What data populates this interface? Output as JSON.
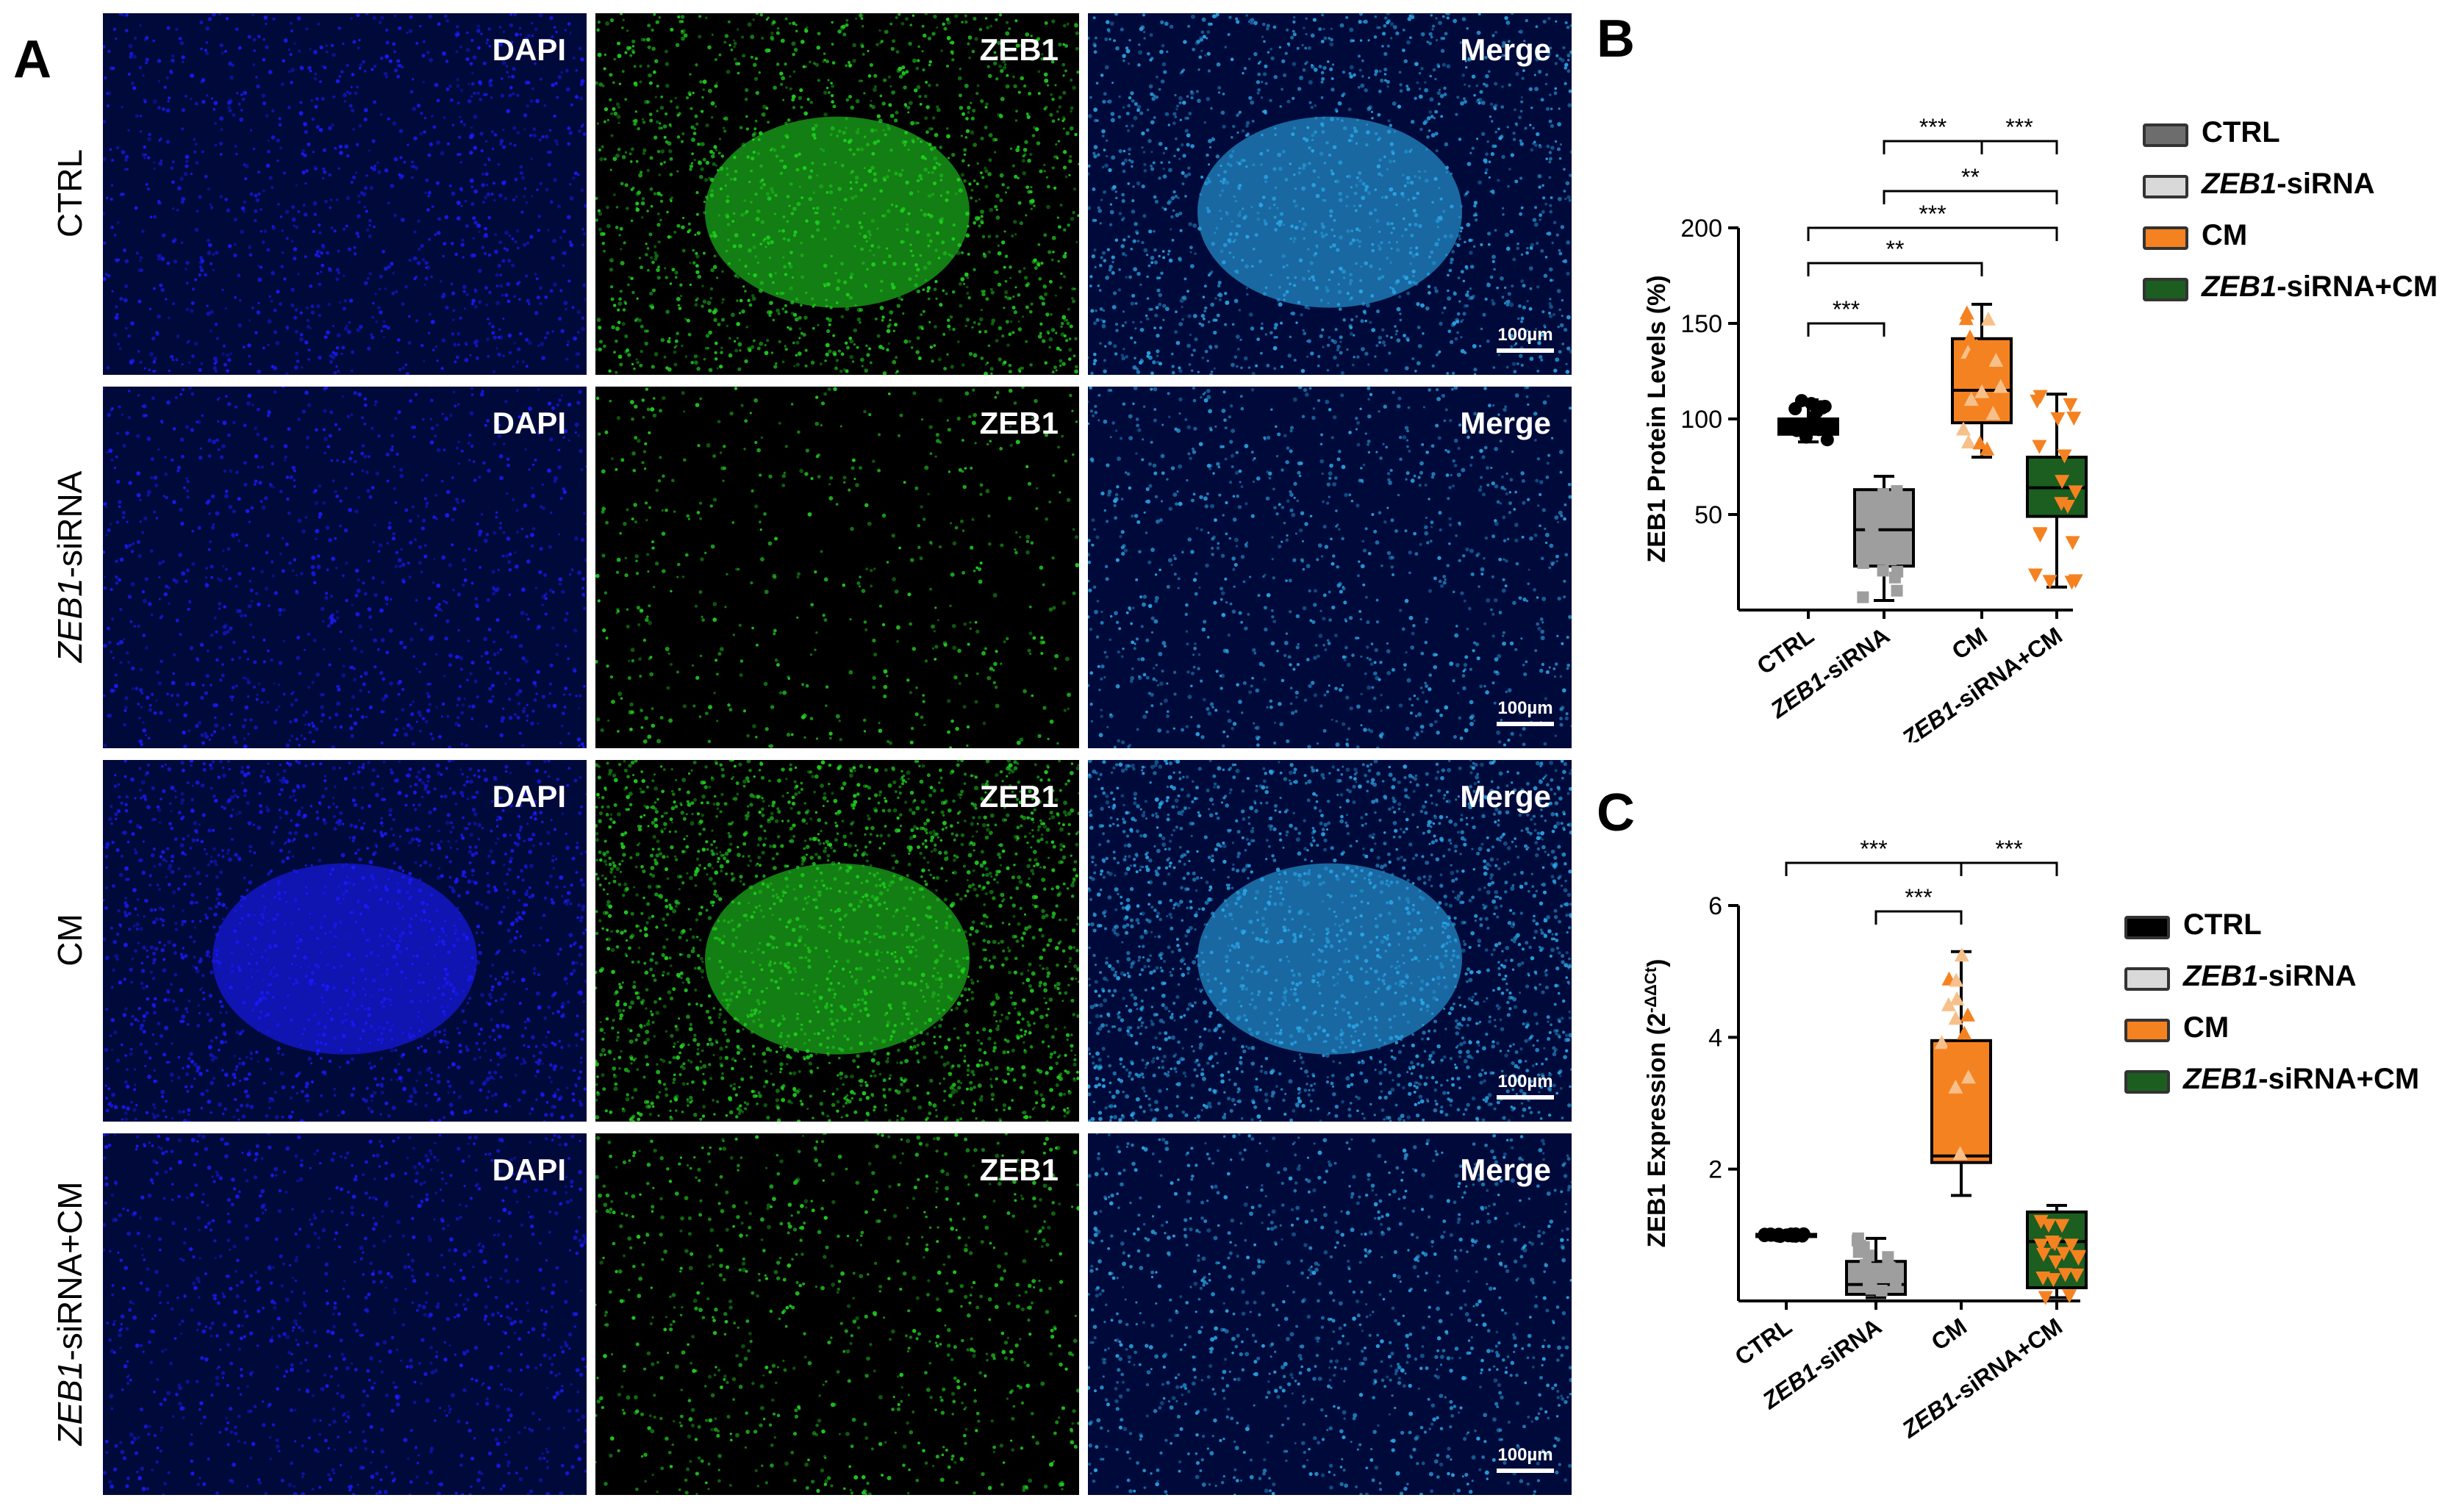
{
  "panel_letters": {
    "a": "A",
    "b": "B",
    "c": "C"
  },
  "micrographs": {
    "columns": [
      "DAPI",
      "ZEB1",
      "Merge"
    ],
    "rows": [
      {
        "label_italic": "",
        "label_plain": "CTRL",
        "intensity": [
          0.35,
          0.55,
          0.55
        ]
      },
      {
        "label_italic": "ZEB1",
        "label_plain": "-siRNA",
        "intensity": [
          0.3,
          0.06,
          0.3
        ]
      },
      {
        "label_italic": "",
        "label_plain": "CM",
        "intensity": [
          0.6,
          0.85,
          0.85
        ]
      },
      {
        "label_italic": "ZEB1",
        "label_plain": "-siRNA+CM",
        "intensity": [
          0.3,
          0.2,
          0.35
        ]
      }
    ],
    "scale_bar": "100µm",
    "channel_colors": {
      "DAPI": "#1a1aff",
      "ZEB1": "#1fd21f",
      "Merge": "#2aa6e6"
    }
  },
  "chart_data": [
    {
      "type": "box",
      "panel": "B",
      "ylabel": "ZEB1 Protein Levels (%)",
      "yticks": [
        50,
        100,
        150,
        200
      ],
      "ylim": [
        0,
        200
      ],
      "categories": [
        "CTRL",
        "ZEB1-siRNA",
        "CM",
        "ZEB1-siRNA+CM"
      ],
      "category_labels": [
        {
          "italic": "",
          "plain": "CTRL"
        },
        {
          "italic": "ZEB1",
          "plain": "-siRNA"
        },
        {
          "italic": "",
          "plain": "CM"
        },
        {
          "italic": "ZEB1",
          "plain": "-siRNA+CM"
        }
      ],
      "series": [
        {
          "name": "CTRL",
          "color": "#000000",
          "marker": "circle",
          "min": 88,
          "q1": 92,
          "median": 96,
          "q3": 100,
          "max": 110
        },
        {
          "name": "ZEB1-siRNA",
          "color": "#9e9e9e",
          "marker": "square",
          "min": 5,
          "q1": 23,
          "median": 42,
          "q3": 63,
          "max": 70
        },
        {
          "name": "CM",
          "color": "#f58220",
          "marker": "triangle-up",
          "min": 80,
          "q1": 98,
          "median": 115,
          "q3": 142,
          "max": 160
        },
        {
          "name": "ZEB1-siRNA+CM",
          "color": "#1b5e20",
          "marker": "triangle-down",
          "min": 12,
          "q1": 49,
          "median": 64,
          "q3": 80,
          "max": 113
        }
      ],
      "significance": [
        {
          "from": 0,
          "to": 1,
          "label": "***"
        },
        {
          "from": 0,
          "to": 2,
          "label": "**"
        },
        {
          "from": 0,
          "to": 3,
          "label": "***"
        },
        {
          "from": 1,
          "to": 3,
          "label": "**"
        },
        {
          "from": 1,
          "to": 2,
          "label": "***"
        },
        {
          "from": 2,
          "to": 3,
          "label": "***"
        }
      ],
      "legend": [
        {
          "italic": "",
          "plain": "CTRL",
          "color": "#6d6d6d"
        },
        {
          "italic": "ZEB1",
          "plain": "-siRNA",
          "color": "#d9d9d9"
        },
        {
          "italic": "",
          "plain": "CM",
          "color": "#f58220"
        },
        {
          "italic": "ZEB1",
          "plain": "-siRNA+CM",
          "color": "#1b5e20"
        }
      ]
    },
    {
      "type": "box",
      "panel": "C",
      "ylabel": "ZEB1 Expression (2",
      "ylabel_sup": "-ΔΔCt",
      "ylabel_end": ")",
      "yticks": [
        2,
        4,
        6
      ],
      "ylim": [
        0,
        6
      ],
      "categories": [
        "CTRL",
        "ZEB1-siRNA",
        "CM",
        "ZEB1-siRNA+CM"
      ],
      "category_labels": [
        {
          "italic": "",
          "plain": "CTRL"
        },
        {
          "italic": "ZEB1",
          "plain": "-siRNA"
        },
        {
          "italic": "",
          "plain": "CM"
        },
        {
          "italic": "ZEB1",
          "plain": "-siRNA+CM"
        }
      ],
      "series": [
        {
          "name": "CTRL",
          "color": "#000000",
          "marker": "circle",
          "min": 0.98,
          "q1": 0.99,
          "median": 1.0,
          "q3": 1.01,
          "max": 1.02
        },
        {
          "name": "ZEB1-siRNA",
          "color": "#9e9e9e",
          "marker": "square",
          "min": 0.05,
          "q1": 0.1,
          "median": 0.25,
          "q3": 0.6,
          "max": 0.95
        },
        {
          "name": "CM",
          "color": "#f58220",
          "marker": "triangle-up",
          "min": 1.6,
          "q1": 2.1,
          "median": 2.2,
          "q3": 3.95,
          "max": 5.3
        },
        {
          "name": "ZEB1-siRNA+CM",
          "color": "#1b5e20",
          "marker": "triangle-down",
          "min": 0.05,
          "q1": 0.2,
          "median": 0.9,
          "q3": 1.35,
          "max": 1.45
        }
      ],
      "significance": [
        {
          "from": 0,
          "to": 2,
          "label": "***"
        },
        {
          "from": 1,
          "to": 2,
          "label": "***"
        },
        {
          "from": 2,
          "to": 3,
          "label": "***"
        }
      ],
      "legend": [
        {
          "italic": "",
          "plain": "CTRL",
          "color": "#000000"
        },
        {
          "italic": "ZEB1",
          "plain": "-siRNA",
          "color": "#d9d9d9"
        },
        {
          "italic": "",
          "plain": "CM",
          "color": "#f58220"
        },
        {
          "italic": "ZEB1",
          "plain": "-siRNA+CM",
          "color": "#1b5e20"
        }
      ]
    }
  ]
}
